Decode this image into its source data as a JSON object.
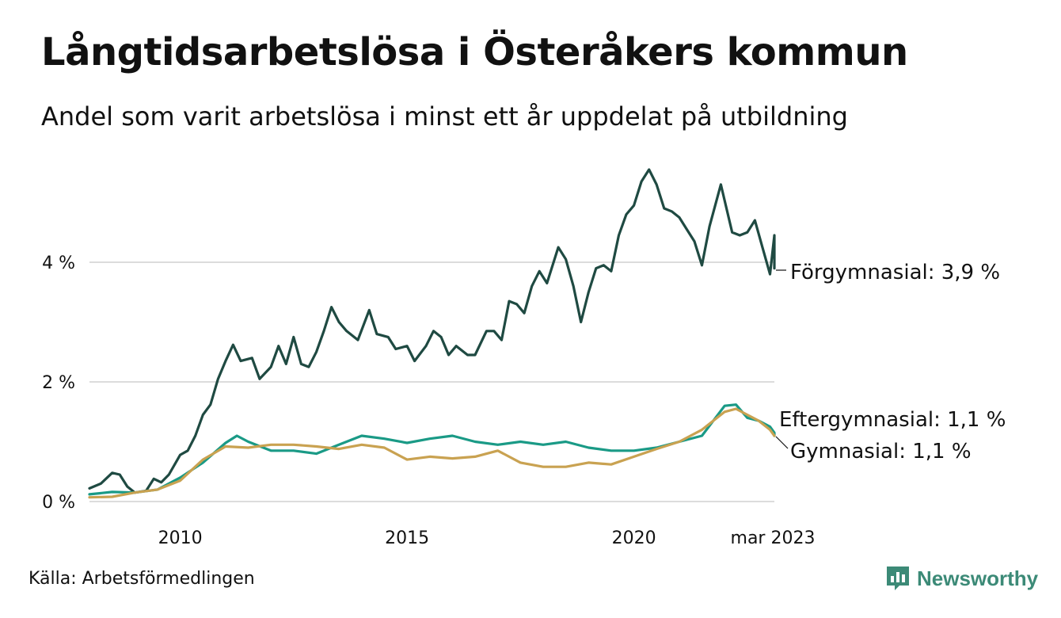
{
  "header": {
    "title": "Långtidsarbetslösa i Österåkers kommun",
    "subtitle": "Andel som varit arbetslösa i minst ett år uppdelat på utbildning"
  },
  "footer": {
    "source": "Källa: Arbetsförmedlingen",
    "brand": "Newsworthy",
    "brand_color": "#3c8a77"
  },
  "chart_data": {
    "type": "line",
    "x_start": "2008-01",
    "x_end": "2023-03",
    "ylim": [
      0,
      6
    ],
    "y_ticks": [
      {
        "value": 0,
        "label": "0 %"
      },
      {
        "value": 2,
        "label": "2 %"
      },
      {
        "value": 4,
        "label": "4 %"
      }
    ],
    "x_ticks": [
      {
        "date": "2010-01",
        "label": "2010"
      },
      {
        "date": "2015-01",
        "label": "2015"
      },
      {
        "date": "2020-01",
        "label": "2020"
      },
      {
        "date": "2023-03",
        "label": "mar 2023"
      }
    ],
    "grid": true,
    "series": [
      {
        "name": "Förgymnasial",
        "end_label": "Förgymnasial: 3,9 %",
        "color": "#1f4a42",
        "points": [
          [
            "2008-01",
            0.22
          ],
          [
            "2008-04",
            0.3
          ],
          [
            "2008-07",
            0.48
          ],
          [
            "2008-09",
            0.45
          ],
          [
            "2008-11",
            0.25
          ],
          [
            "2009-01",
            0.15
          ],
          [
            "2009-04",
            0.18
          ],
          [
            "2009-06",
            0.38
          ],
          [
            "2009-08",
            0.32
          ],
          [
            "2009-10",
            0.45
          ],
          [
            "2010-01",
            0.78
          ],
          [
            "2010-03",
            0.85
          ],
          [
            "2010-05",
            1.1
          ],
          [
            "2010-07",
            1.45
          ],
          [
            "2010-09",
            1.62
          ],
          [
            "2010-11",
            2.05
          ],
          [
            "2011-01",
            2.35
          ],
          [
            "2011-03",
            2.62
          ],
          [
            "2011-05",
            2.35
          ],
          [
            "2011-08",
            2.4
          ],
          [
            "2011-10",
            2.05
          ],
          [
            "2012-01",
            2.25
          ],
          [
            "2012-03",
            2.6
          ],
          [
            "2012-05",
            2.3
          ],
          [
            "2012-07",
            2.75
          ],
          [
            "2012-09",
            2.3
          ],
          [
            "2012-11",
            2.25
          ],
          [
            "2013-01",
            2.5
          ],
          [
            "2013-03",
            2.85
          ],
          [
            "2013-05",
            3.25
          ],
          [
            "2013-07",
            3.0
          ],
          [
            "2013-09",
            2.85
          ],
          [
            "2013-12",
            2.7
          ],
          [
            "2014-03",
            3.2
          ],
          [
            "2014-05",
            2.8
          ],
          [
            "2014-08",
            2.75
          ],
          [
            "2014-10",
            2.55
          ],
          [
            "2015-01",
            2.6
          ],
          [
            "2015-03",
            2.35
          ],
          [
            "2015-06",
            2.6
          ],
          [
            "2015-08",
            2.85
          ],
          [
            "2015-10",
            2.75
          ],
          [
            "2015-12",
            2.45
          ],
          [
            "2016-02",
            2.6
          ],
          [
            "2016-05",
            2.45
          ],
          [
            "2016-07",
            2.45
          ],
          [
            "2016-10",
            2.85
          ],
          [
            "2016-12",
            2.85
          ],
          [
            "2017-02",
            2.7
          ],
          [
            "2017-04",
            3.35
          ],
          [
            "2017-06",
            3.3
          ],
          [
            "2017-08",
            3.15
          ],
          [
            "2017-10",
            3.6
          ],
          [
            "2017-12",
            3.85
          ],
          [
            "2018-02",
            3.65
          ],
          [
            "2018-05",
            4.25
          ],
          [
            "2018-07",
            4.05
          ],
          [
            "2018-09",
            3.6
          ],
          [
            "2018-11",
            3.0
          ],
          [
            "2019-01",
            3.5
          ],
          [
            "2019-03",
            3.9
          ],
          [
            "2019-05",
            3.95
          ],
          [
            "2019-07",
            3.85
          ],
          [
            "2019-09",
            4.45
          ],
          [
            "2019-11",
            4.8
          ],
          [
            "2020-01",
            4.95
          ],
          [
            "2020-03",
            5.35
          ],
          [
            "2020-05",
            5.55
          ],
          [
            "2020-07",
            5.3
          ],
          [
            "2020-09",
            4.9
          ],
          [
            "2020-11",
            4.85
          ],
          [
            "2021-01",
            4.75
          ],
          [
            "2021-03",
            4.55
          ],
          [
            "2021-05",
            4.35
          ],
          [
            "2021-07",
            3.95
          ],
          [
            "2021-09",
            4.6
          ],
          [
            "2021-12",
            5.3
          ],
          [
            "2022-03",
            4.5
          ],
          [
            "2022-05",
            4.45
          ],
          [
            "2022-07",
            4.5
          ],
          [
            "2022-09",
            4.7
          ],
          [
            "2022-11",
            4.25
          ],
          [
            "2023-01",
            3.8
          ],
          [
            "2023-03",
            4.45
          ],
          [
            "2023-05",
            4.4
          ],
          [
            "2023-07",
            3.9
          ]
        ]
      },
      {
        "name": "Eftergymnasial",
        "end_label": "Eftergymnasial: 1,1 %",
        "color": "#1a9a86",
        "points": [
          [
            "2008-01",
            0.12
          ],
          [
            "2008-07",
            0.16
          ],
          [
            "2009-01",
            0.15
          ],
          [
            "2009-07",
            0.2
          ],
          [
            "2010-01",
            0.4
          ],
          [
            "2010-07",
            0.65
          ],
          [
            "2011-01",
            0.98
          ],
          [
            "2011-04",
            1.1
          ],
          [
            "2011-07",
            1.0
          ],
          [
            "2012-01",
            0.85
          ],
          [
            "2012-07",
            0.85
          ],
          [
            "2013-01",
            0.8
          ],
          [
            "2013-07",
            0.95
          ],
          [
            "2014-01",
            1.1
          ],
          [
            "2014-07",
            1.05
          ],
          [
            "2015-01",
            0.98
          ],
          [
            "2015-07",
            1.05
          ],
          [
            "2016-01",
            1.1
          ],
          [
            "2016-07",
            1.0
          ],
          [
            "2017-01",
            0.95
          ],
          [
            "2017-07",
            1.0
          ],
          [
            "2018-01",
            0.95
          ],
          [
            "2018-07",
            1.0
          ],
          [
            "2019-01",
            0.9
          ],
          [
            "2019-07",
            0.85
          ],
          [
            "2020-01",
            0.85
          ],
          [
            "2020-07",
            0.9
          ],
          [
            "2021-01",
            1.0
          ],
          [
            "2021-07",
            1.1
          ],
          [
            "2022-01",
            1.6
          ],
          [
            "2022-04",
            1.62
          ],
          [
            "2022-07",
            1.4
          ],
          [
            "2022-10",
            1.35
          ],
          [
            "2023-01",
            1.25
          ],
          [
            "2023-04",
            1.15
          ],
          [
            "2023-07",
            1.1
          ]
        ]
      },
      {
        "name": "Gymnasial",
        "end_label": "Gymnasial: 1,1 %",
        "color": "#c9a251",
        "points": [
          [
            "2008-01",
            0.07
          ],
          [
            "2008-07",
            0.08
          ],
          [
            "2009-01",
            0.15
          ],
          [
            "2009-07",
            0.2
          ],
          [
            "2010-01",
            0.35
          ],
          [
            "2010-07",
            0.7
          ],
          [
            "2011-01",
            0.92
          ],
          [
            "2011-07",
            0.9
          ],
          [
            "2012-01",
            0.95
          ],
          [
            "2012-07",
            0.95
          ],
          [
            "2013-01",
            0.92
          ],
          [
            "2013-07",
            0.88
          ],
          [
            "2014-01",
            0.95
          ],
          [
            "2014-07",
            0.9
          ],
          [
            "2015-01",
            0.7
          ],
          [
            "2015-07",
            0.75
          ],
          [
            "2016-01",
            0.72
          ],
          [
            "2016-07",
            0.75
          ],
          [
            "2017-01",
            0.85
          ],
          [
            "2017-07",
            0.65
          ],
          [
            "2018-01",
            0.58
          ],
          [
            "2018-07",
            0.58
          ],
          [
            "2019-01",
            0.65
          ],
          [
            "2019-07",
            0.62
          ],
          [
            "2020-01",
            0.75
          ],
          [
            "2020-07",
            0.88
          ],
          [
            "2021-01",
            1.0
          ],
          [
            "2021-07",
            1.2
          ],
          [
            "2022-01",
            1.5
          ],
          [
            "2022-04",
            1.55
          ],
          [
            "2022-07",
            1.45
          ],
          [
            "2022-10",
            1.35
          ],
          [
            "2023-01",
            1.2
          ],
          [
            "2023-04",
            1.1
          ],
          [
            "2023-07",
            1.1
          ]
        ]
      }
    ]
  }
}
